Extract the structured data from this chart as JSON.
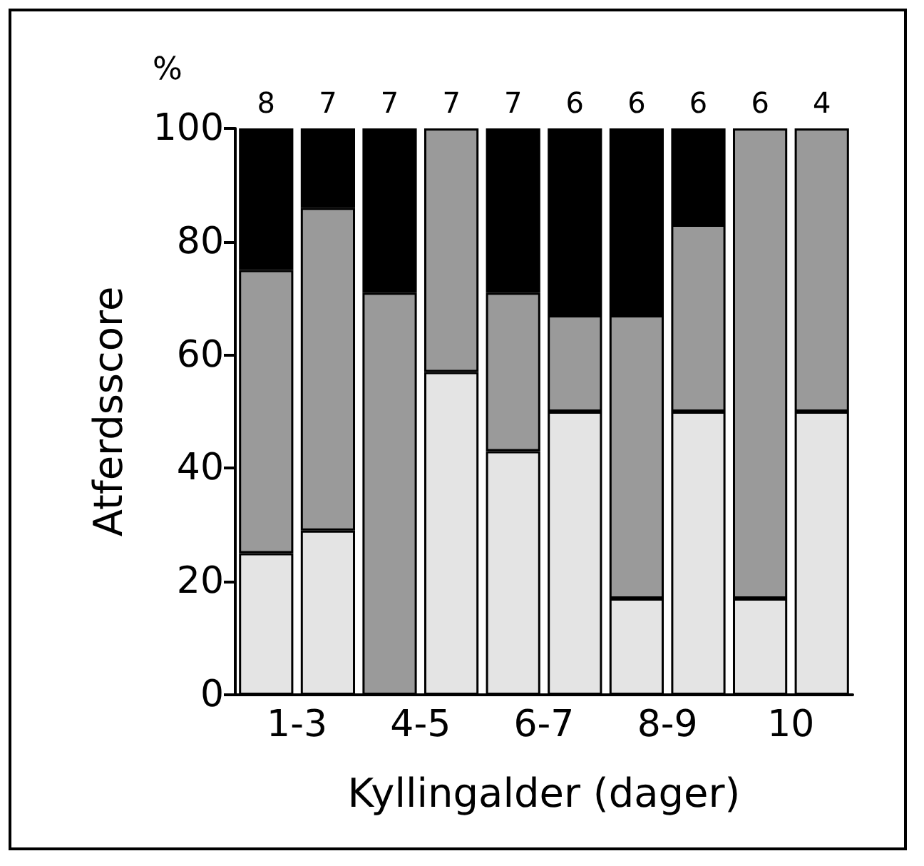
{
  "chart_data": {
    "type": "bar",
    "stacked": true,
    "xlabel": "Kyllingalder (dager)",
    "ylabel": "Atferdsscore",
    "annotations": [
      "%",
      "8",
      "7",
      "7",
      "7",
      "7",
      "6",
      "6",
      "6",
      "6",
      "4"
    ],
    "categories": [
      "1-3",
      null,
      "4-5",
      null,
      "6-7",
      null,
      "8-9",
      null,
      "10",
      null
    ],
    "series": [
      {
        "color": "#e4e4e4",
        "values": [
          25,
          29,
          0,
          57,
          43,
          50,
          17,
          50,
          17,
          50
        ]
      },
      {
        "color": "#9a9a9a",
        "values": [
          50,
          57,
          71,
          43,
          28,
          17,
          50,
          33,
          83,
          50
        ]
      },
      {
        "color": "#000000",
        "values": [
          25,
          14,
          29,
          0,
          29,
          33,
          33,
          17,
          0,
          0
        ]
      }
    ],
    "ylim": [
      0,
      100
    ],
    "yticks": [
      0,
      20,
      40,
      60,
      80,
      100
    ],
    "grid": false
  }
}
